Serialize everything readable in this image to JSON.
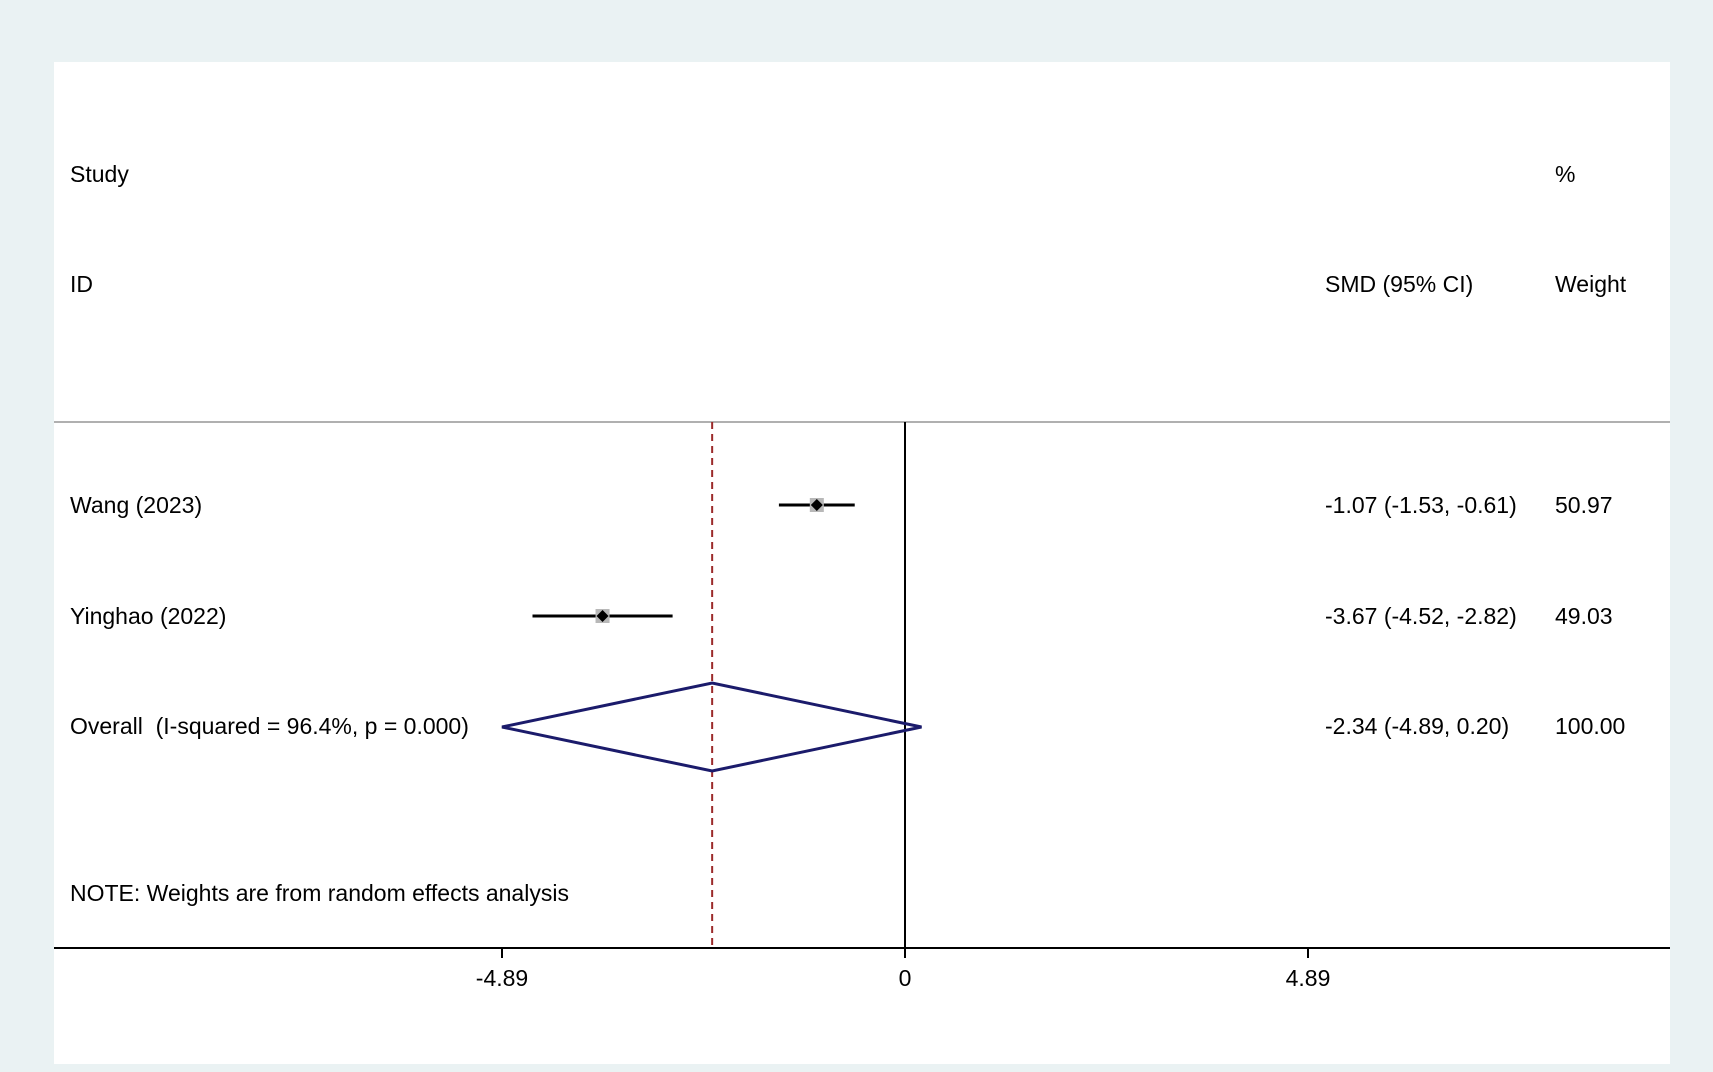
{
  "chart_data": {
    "type": "forest",
    "header": {
      "study_line1": "Study",
      "study_line2": "ID",
      "effect_label": "SMD (95% CI)",
      "weight_line1": "%",
      "weight_line2": "Weight"
    },
    "studies": [
      {
        "name": "Wang (2023)",
        "estimate": -1.07,
        "ci_low": -1.53,
        "ci_high": -0.61,
        "ci_text": "-1.07 (-1.53, -0.61)",
        "weight": "50.97"
      },
      {
        "name": "Yinghao (2022)",
        "estimate": -3.67,
        "ci_low": -4.52,
        "ci_high": -2.82,
        "ci_text": "-3.67 (-4.52, -2.82)",
        "weight": "49.03"
      }
    ],
    "overall": {
      "label": "Overall  (I-squared = 96.4%, p = 0.000)",
      "estimate": -2.34,
      "ci_low": -4.89,
      "ci_high": 0.2,
      "ci_text": "-2.34 (-4.89, 0.20)",
      "weight": "100.00"
    },
    "note": "NOTE: Weights are from random effects analysis",
    "x_ticks": [
      {
        "value": -4.89,
        "label": "-4.89"
      },
      {
        "value": 0,
        "label": "0"
      },
      {
        "value": 4.89,
        "label": "4.89"
      }
    ],
    "xlim": [
      -4.89,
      4.89
    ],
    "null_line": 0,
    "colors": {
      "background": "#eaf2f3",
      "plot": "#ffffff",
      "diamond": "#1b1b6b",
      "overall_line": "#9b2a2a",
      "marker_box": "#b8b8b8",
      "ci_line": "#000000"
    }
  }
}
